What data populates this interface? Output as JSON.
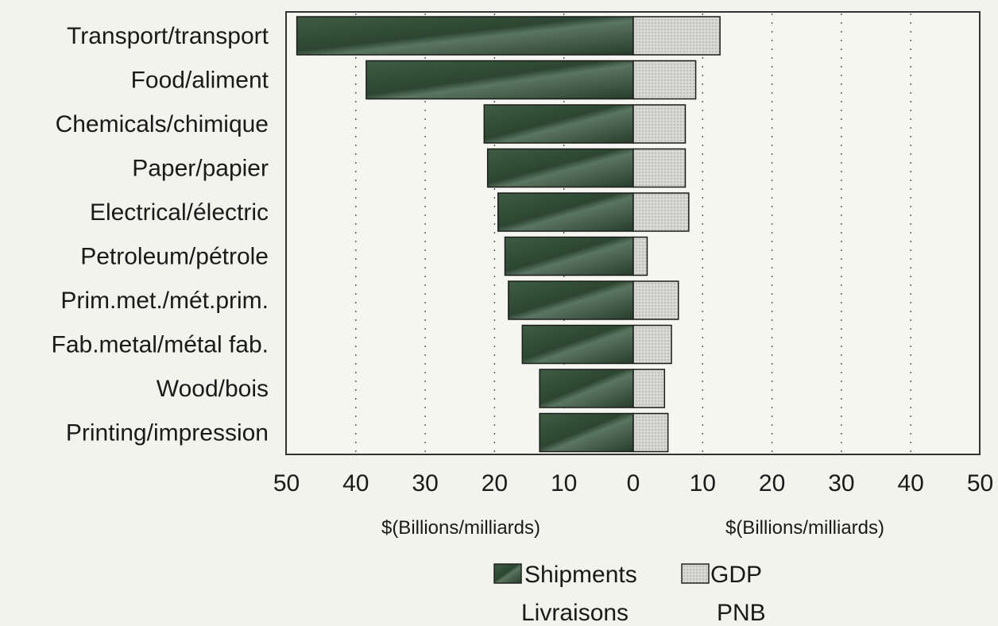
{
  "chart_data": {
    "type": "bar",
    "orientation": "horizontal-back-to-back",
    "categories": [
      "Transport/transport",
      "Food/aliment",
      "Chemicals/chimique",
      "Paper/papier",
      "Electrical/électric",
      "Petroleum/pétrole",
      "Prim.met./mét.prim.",
      "Fab.metal/métal fab.",
      "Wood/bois",
      "Printing/impression"
    ],
    "series": [
      {
        "name": "Shipments",
        "name_line2": "Livraisons",
        "side": "left",
        "color": "#2f4a34",
        "values": [
          48.5,
          38.5,
          21.5,
          21,
          19.5,
          18.5,
          18,
          16,
          13.5,
          13.5
        ]
      },
      {
        "name": "GDP",
        "name_line2": "PNB",
        "side": "right",
        "color": "#d4d4d0",
        "values": [
          12.5,
          9,
          7.5,
          7.5,
          8,
          2,
          6.5,
          5.5,
          4.5,
          5
        ]
      }
    ],
    "xlim_left": [
      50,
      0
    ],
    "xlim_right": [
      0,
      50
    ],
    "xticks_left": [
      "50",
      "40",
      "30",
      "20",
      "10",
      "0"
    ],
    "xticks_right": [
      "10",
      "20",
      "30",
      "40",
      "50"
    ],
    "xlabel_left": "$(Billions/milliards)",
    "xlabel_right": "$(Billions/milliards)",
    "grid": "vertical-dotted",
    "legend_position": "bottom-center"
  }
}
